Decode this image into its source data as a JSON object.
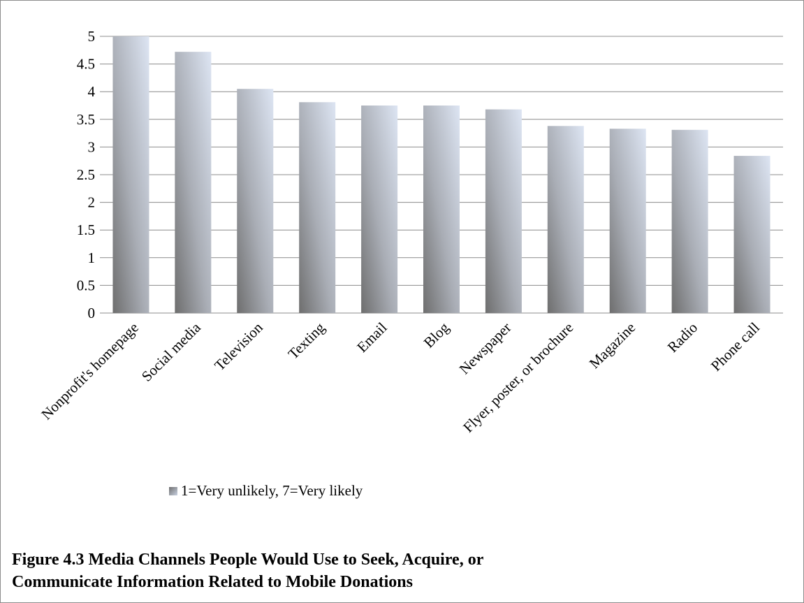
{
  "chart_data": {
    "type": "bar",
    "categories": [
      "Nonprofit's homepage",
      "Social media",
      "Television",
      "Texting",
      "Email",
      "Blog",
      "Newspaper",
      "Flyer, poster, or brochure",
      "Magazine",
      "Radio",
      "Phone call"
    ],
    "series": [
      {
        "name": "1=Very unlikely, 7=Very likely",
        "values": [
          5.0,
          4.72,
          4.05,
          3.81,
          3.75,
          3.75,
          3.68,
          3.38,
          3.33,
          3.31,
          2.84
        ]
      }
    ],
    "ylim": [
      0,
      5
    ],
    "yticks": [
      "0",
      "0.5",
      "1",
      "1.5",
      "2",
      "2.5",
      "3",
      "3.5",
      "4",
      "4.5",
      "5"
    ],
    "grid": true,
    "legend_position": "bottom-left",
    "colors": {
      "bar_dark": "#6e6e6e",
      "bar_light": "#dde5f3",
      "grid": "#8c8c8c"
    }
  },
  "caption": {
    "line1": "Figure 4.3 Media Channels People Would Use to Seek, Acquire, or",
    "line2": "Communicate Information Related to Mobile Donations"
  }
}
